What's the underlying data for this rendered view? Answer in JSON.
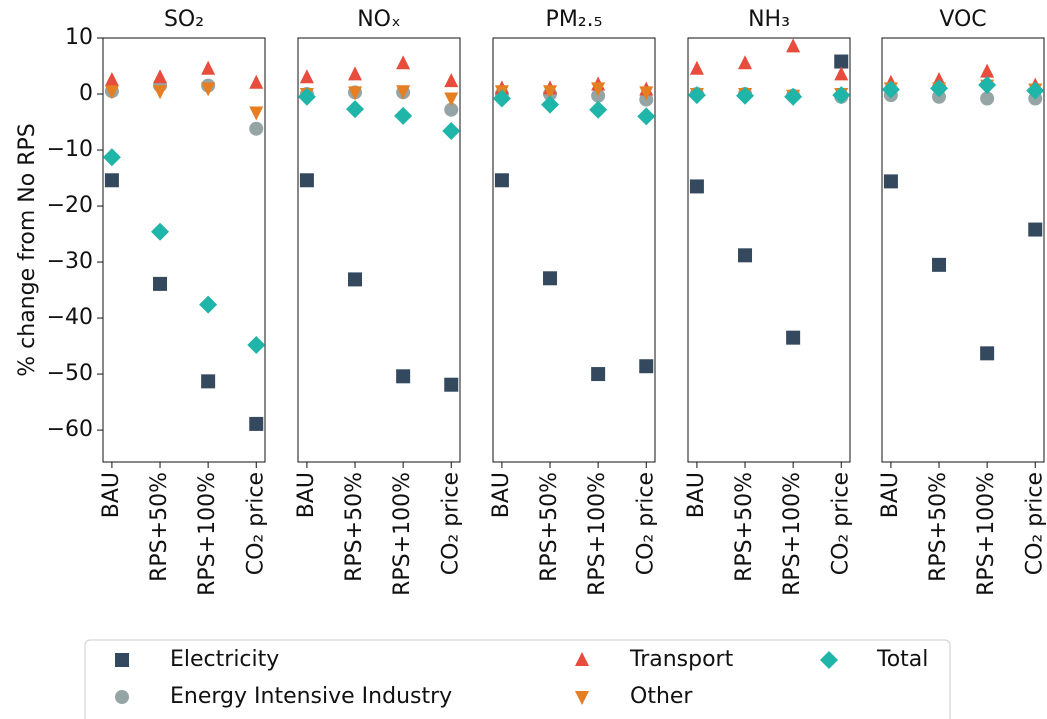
{
  "chart_data": [
    {
      "type": "scatter",
      "title": "SO₂",
      "ylabel": "% change from No RPS",
      "categories": [
        "BAU",
        "RPS+50%",
        "RPS+100%",
        "CO₂ price"
      ],
      "ylim": [
        -65.7,
        10
      ],
      "yticks": [
        10,
        0,
        {
          "value": -10,
          "label": "−10"
        },
        {
          "value": -20,
          "label": "−20"
        },
        {
          "value": -30,
          "label": "−30"
        },
        {
          "value": -40,
          "label": "−40"
        },
        {
          "value": -50,
          "label": "−50"
        },
        {
          "value": -60,
          "label": "−60"
        }
      ],
      "series": [
        {
          "name": "Electricity",
          "color": "#34495e",
          "marker": "square",
          "values": [
            -15.4,
            -33.9,
            -51.3,
            -58.9
          ]
        },
        {
          "name": "Energy Intensive Industry",
          "color": "#95a5a6",
          "marker": "circle",
          "values": [
            0.5,
            1.5,
            1.5,
            -6.2
          ]
        },
        {
          "name": "Transport",
          "color": "#e74c3c",
          "marker": "triangle-up",
          "values": [
            2.5,
            3,
            4.5,
            2
          ]
        },
        {
          "name": "Other",
          "color": "#e67e22",
          "marker": "triangle-down",
          "values": [
            0.5,
            0.5,
            1,
            -3.3
          ]
        },
        {
          "name": "Total",
          "color": "#1fb5a8",
          "marker": "diamond",
          "values": [
            -11.3,
            -24.6,
            -37.6,
            -44.8
          ]
        }
      ]
    },
    {
      "type": "scatter",
      "title": "NOₓ",
      "categories": [
        "BAU",
        "RPS+50%",
        "RPS+100%",
        "CO₂ price"
      ],
      "ylim": [
        -65.7,
        10
      ],
      "series": [
        {
          "name": "Electricity",
          "color": "#34495e",
          "marker": "square",
          "values": [
            -15.4,
            -33.1,
            -50.4,
            -51.9
          ]
        },
        {
          "name": "Energy Intensive Industry",
          "color": "#95a5a6",
          "marker": "circle",
          "values": [
            0,
            0.3,
            0.3,
            -2.8
          ]
        },
        {
          "name": "Transport",
          "color": "#e74c3c",
          "marker": "triangle-up",
          "values": [
            3,
            3.5,
            5.5,
            2.3
          ]
        },
        {
          "name": "Other",
          "color": "#e67e22",
          "marker": "triangle-down",
          "values": [
            0,
            0.3,
            0.5,
            -0.8
          ]
        },
        {
          "name": "Total",
          "color": "#1fb5a8",
          "marker": "diamond",
          "values": [
            -0.5,
            -2.7,
            -3.9,
            -6.6
          ]
        }
      ]
    },
    {
      "type": "scatter",
      "title": "PM₂.₅",
      "categories": [
        "BAU",
        "RPS+50%",
        "RPS+100%",
        "CO₂ price"
      ],
      "ylim": [
        -65.7,
        10
      ],
      "series": [
        {
          "name": "Electricity",
          "color": "#34495e",
          "marker": "square",
          "values": [
            -15.4,
            -32.9,
            -50,
            -48.6
          ]
        },
        {
          "name": "Energy Intensive Industry",
          "color": "#95a5a6",
          "marker": "circle",
          "values": [
            0,
            0,
            -0.3,
            -1
          ]
        },
        {
          "name": "Transport",
          "color": "#e74c3c",
          "marker": "triangle-up",
          "values": [
            1,
            1,
            1.7,
            0.8
          ]
        },
        {
          "name": "Other",
          "color": "#e67e22",
          "marker": "triangle-down",
          "values": [
            0.5,
            0.5,
            1,
            0.3
          ]
        },
        {
          "name": "Total",
          "color": "#1fb5a8",
          "marker": "diamond",
          "values": [
            -0.8,
            -1.9,
            -2.8,
            -4
          ]
        }
      ]
    },
    {
      "type": "scatter",
      "title": "NH₃",
      "categories": [
        "BAU",
        "RPS+50%",
        "RPS+100%",
        "CO₂ price"
      ],
      "ylim": [
        -65.7,
        10
      ],
      "series": [
        {
          "name": "Electricity",
          "color": "#34495e",
          "marker": "square",
          "values": [
            -16.5,
            -28.8,
            -43.5,
            5.8
          ]
        },
        {
          "name": "Energy Intensive Industry",
          "color": "#95a5a6",
          "marker": "circle",
          "values": [
            0,
            0,
            -0.3,
            -0.5
          ]
        },
        {
          "name": "Transport",
          "color": "#e74c3c",
          "marker": "triangle-up",
          "values": [
            4.5,
            5.5,
            8.5,
            3.5
          ]
        },
        {
          "name": "Other",
          "color": "#e67e22",
          "marker": "triangle-down",
          "values": [
            0,
            0,
            -0.3,
            0
          ]
        },
        {
          "name": "Total",
          "color": "#1fb5a8",
          "marker": "diamond",
          "values": [
            -0.2,
            -0.3,
            -0.5,
            -0.2
          ]
        }
      ]
    },
    {
      "type": "scatter",
      "title": "VOC",
      "categories": [
        "BAU",
        "RPS+50%",
        "RPS+100%",
        "CO₂ price"
      ],
      "ylim": [
        -65.7,
        10
      ],
      "series": [
        {
          "name": "Electricity",
          "color": "#34495e",
          "marker": "square",
          "values": [
            -15.6,
            -30.5,
            -46.3,
            -24.2
          ]
        },
        {
          "name": "Energy Intensive Industry",
          "color": "#95a5a6",
          "marker": "circle",
          "values": [
            -0.2,
            -0.5,
            -0.8,
            -0.8
          ]
        },
        {
          "name": "Transport",
          "color": "#e74c3c",
          "marker": "triangle-up",
          "values": [
            2,
            2.5,
            4,
            1.5
          ]
        },
        {
          "name": "Other",
          "color": "#e67e22",
          "marker": "triangle-down",
          "values": [
            1,
            1,
            1.5,
            0.8
          ]
        },
        {
          "name": "Total",
          "color": "#1fb5a8",
          "marker": "diamond",
          "values": [
            0.8,
            1,
            1.6,
            0.6
          ]
        }
      ]
    }
  ]
}
